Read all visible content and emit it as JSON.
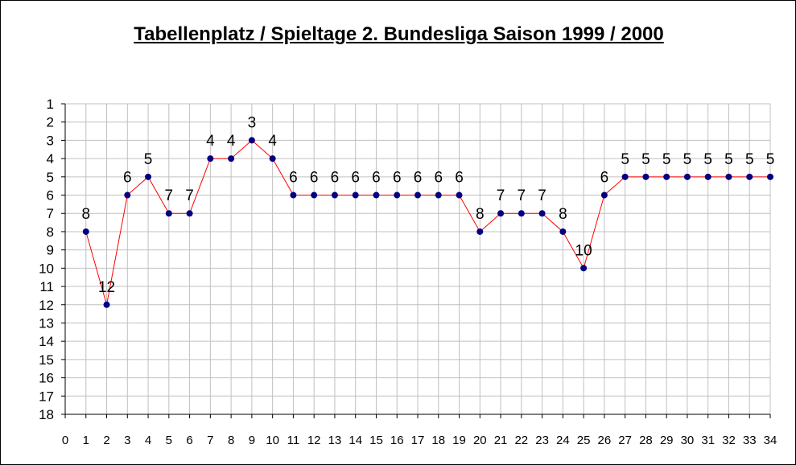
{
  "chart_data": {
    "type": "line",
    "title": "Tabellenplatz / Spieltage 2. Bundesliga Saison 1999 / 2000",
    "xlabel": "",
    "ylabel": "",
    "x": [
      1,
      2,
      3,
      4,
      5,
      6,
      7,
      8,
      9,
      10,
      11,
      12,
      13,
      14,
      15,
      16,
      17,
      18,
      19,
      20,
      21,
      22,
      23,
      24,
      25,
      26,
      27,
      28,
      29,
      30,
      31,
      32,
      33,
      34
    ],
    "values": [
      8,
      12,
      6,
      5,
      7,
      7,
      4,
      4,
      3,
      4,
      6,
      6,
      6,
      6,
      6,
      6,
      6,
      6,
      6,
      8,
      7,
      7,
      7,
      8,
      10,
      6,
      5,
      5,
      5,
      5,
      5,
      5,
      5,
      5
    ],
    "xlim": [
      0,
      34
    ],
    "ylim": [
      1,
      18
    ],
    "y_reversed": true,
    "x_ticks": [
      0,
      1,
      2,
      3,
      4,
      5,
      6,
      7,
      8,
      9,
      10,
      11,
      12,
      13,
      14,
      15,
      16,
      17,
      18,
      19,
      20,
      21,
      22,
      23,
      24,
      25,
      26,
      27,
      28,
      29,
      30,
      31,
      32,
      33,
      34
    ],
    "y_ticks": [
      1,
      2,
      3,
      4,
      5,
      6,
      7,
      8,
      9,
      10,
      11,
      12,
      13,
      14,
      15,
      16,
      17,
      18
    ],
    "grid": true,
    "data_labels": true,
    "legend": "none",
    "colors": {
      "line": "#ff0000",
      "marker": "#000080",
      "grid": "#c0c0c0",
      "axis": "#000000",
      "text": "#000000"
    }
  }
}
